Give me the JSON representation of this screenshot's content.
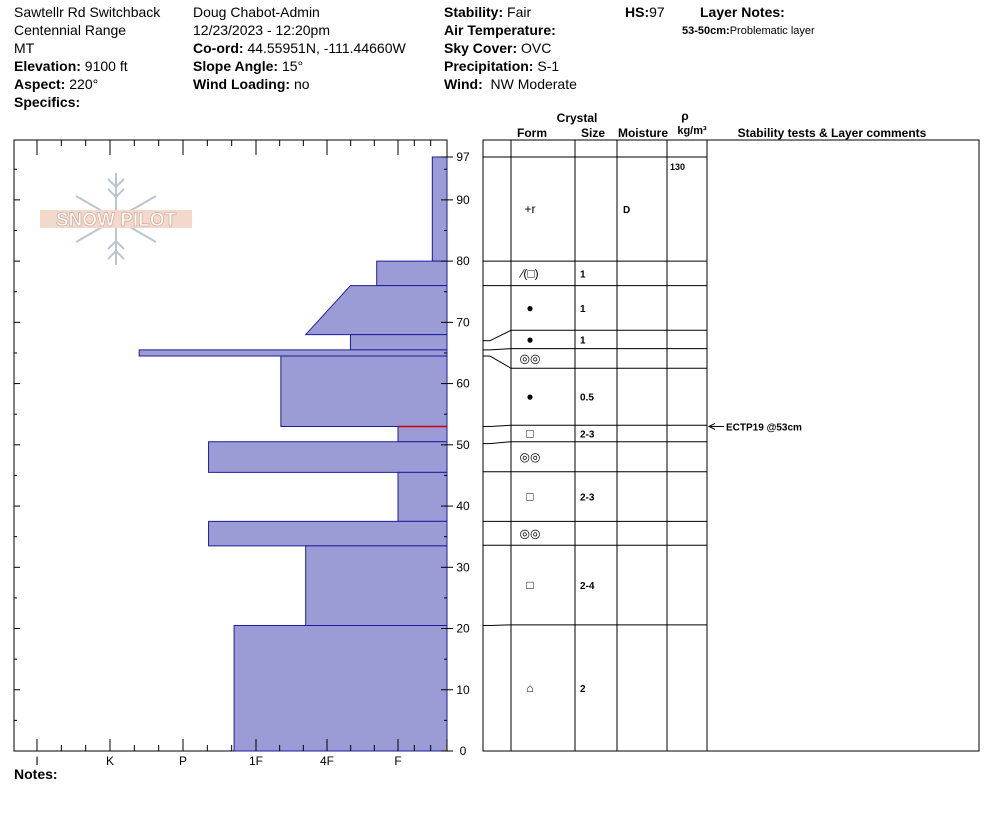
{
  "header": {
    "location": "Sawtellr Rd Switchback",
    "range": "Centennial Range",
    "state": "MT",
    "elevation_label": "Elevation:",
    "elevation": "9100 ft",
    "aspect_label": "Aspect:",
    "aspect": "220°",
    "specifics_label": "Specifics:",
    "observer": "Doug Chabot-Admin",
    "datetime": "12/23/2023 - 12:20pm",
    "coord_label": "Co-ord:",
    "coord": "44.55951N, -111.44660W",
    "slope_label": "Slope Angle:",
    "slope": "15°",
    "wind_loading_label": "Wind Loading:",
    "wind_loading": "no",
    "stability_label": "Stability:",
    "stability": "Fair",
    "air_temp_label": "Air Temperature:",
    "sky_label": "Sky Cover:",
    "sky": "OVC",
    "precip_label": "Precipitation:",
    "precip": "S-1",
    "wind_label": "Wind:",
    "wind": "NW Moderate",
    "hs_label": "HS:",
    "hs": "97",
    "layer_notes_label": "Layer Notes:",
    "layer_note_range": "53-50cm:",
    "layer_note_text": "Problematic layer",
    "notes_label": "Notes:"
  },
  "logo_text": "SNOW PILOT",
  "columns": {
    "crystal": "Crystal",
    "form": "Form",
    "size": "Size",
    "moisture": "Moisture",
    "rho": "ρ",
    "density_unit": "kg/m³",
    "stability": "Stability tests & Layer comments"
  },
  "colors": {
    "profile_fill": "#9b9bd6",
    "profile_stroke": "#1c1c9c",
    "weak_layer": "#cc0000"
  },
  "chart_data": {
    "type": "snow-profile",
    "hardness_scale": [
      "I",
      "K",
      "P",
      "1F",
      "4F",
      "F"
    ],
    "depth_ticks": [
      0,
      10,
      20,
      30,
      40,
      50,
      60,
      70,
      80,
      90,
      97
    ],
    "depth_range": [
      0,
      97
    ],
    "hardness_profile": [
      {
        "top": 97,
        "bottom": 80,
        "hardness_top": 0.3,
        "hardness_bottom": 0.3
      },
      {
        "top": 80,
        "bottom": 76,
        "hardness_top": 1.3,
        "hardness_bottom": 1.3
      },
      {
        "top": 76,
        "bottom": 68,
        "hardness_top": 1.67,
        "hardness_bottom": 2.3
      },
      {
        "top": 68,
        "bottom": 65.5,
        "hardness_top": 1.67,
        "hardness_bottom": 1.67
      },
      {
        "top": 65.5,
        "bottom": 64.5,
        "hardness_top": 4.6,
        "hardness_bottom": 4.6
      },
      {
        "top": 64.5,
        "bottom": 53,
        "hardness_top": 2.65,
        "hardness_bottom": 2.65
      },
      {
        "top": 53,
        "bottom": 50.5,
        "hardness_top": 1.0,
        "hardness_bottom": 1.0
      },
      {
        "top": 50.5,
        "bottom": 45.5,
        "hardness_top": 3.65,
        "hardness_bottom": 3.65
      },
      {
        "top": 45.5,
        "bottom": 37.5,
        "hardness_top": 1.0,
        "hardness_bottom": 1.0
      },
      {
        "top": 37.5,
        "bottom": 33.5,
        "hardness_top": 3.65,
        "hardness_bottom": 3.65
      },
      {
        "top": 33.5,
        "bottom": 20.5,
        "hardness_top": 2.3,
        "hardness_bottom": 2.3
      },
      {
        "top": 20.5,
        "bottom": 0,
        "hardness_top": 3.3,
        "hardness_bottom": 3.3
      }
    ],
    "weak_layer_depth": 53,
    "layers": [
      {
        "top": 97,
        "bottom": 80,
        "form": "+r",
        "size": "",
        "moisture": "D",
        "density": "130"
      },
      {
        "top": 80,
        "bottom": 76,
        "form": "∕(□)",
        "size": "1",
        "moisture": "",
        "density": ""
      },
      {
        "top": 76,
        "bottom": 68.7,
        "form": "●",
        "size": "1",
        "moisture": "",
        "density": ""
      },
      {
        "top": 68.7,
        "bottom": 65.7,
        "form": "●",
        "size": "1",
        "moisture": "",
        "density": ""
      },
      {
        "top": 65.7,
        "bottom": 62.5,
        "form": "◎◎",
        "size": "",
        "moisture": "",
        "density": ""
      },
      {
        "top": 62.5,
        "bottom": 53.2,
        "form": "●",
        "size": "0.5",
        "moisture": "",
        "density": ""
      },
      {
        "top": 53.2,
        "bottom": 50.5,
        "form": "□",
        "size": "2-3",
        "moisture": "",
        "density": ""
      },
      {
        "top": 50.5,
        "bottom": 45.6,
        "form": "◎◎",
        "size": "",
        "moisture": "",
        "density": ""
      },
      {
        "top": 45.6,
        "bottom": 37.5,
        "form": "□",
        "size": "2-3",
        "moisture": "",
        "density": ""
      },
      {
        "top": 37.5,
        "bottom": 33.6,
        "form": "◎◎",
        "size": "",
        "moisture": "",
        "density": ""
      },
      {
        "top": 33.6,
        "bottom": 20.6,
        "form": "□",
        "size": "2-4",
        "moisture": "",
        "density": ""
      },
      {
        "top": 20.6,
        "bottom": 0,
        "form": "⌂",
        "size": "2",
        "moisture": "",
        "density": ""
      }
    ],
    "stability_test": {
      "label": "ECTP19 @53cm",
      "depth": 53
    }
  }
}
